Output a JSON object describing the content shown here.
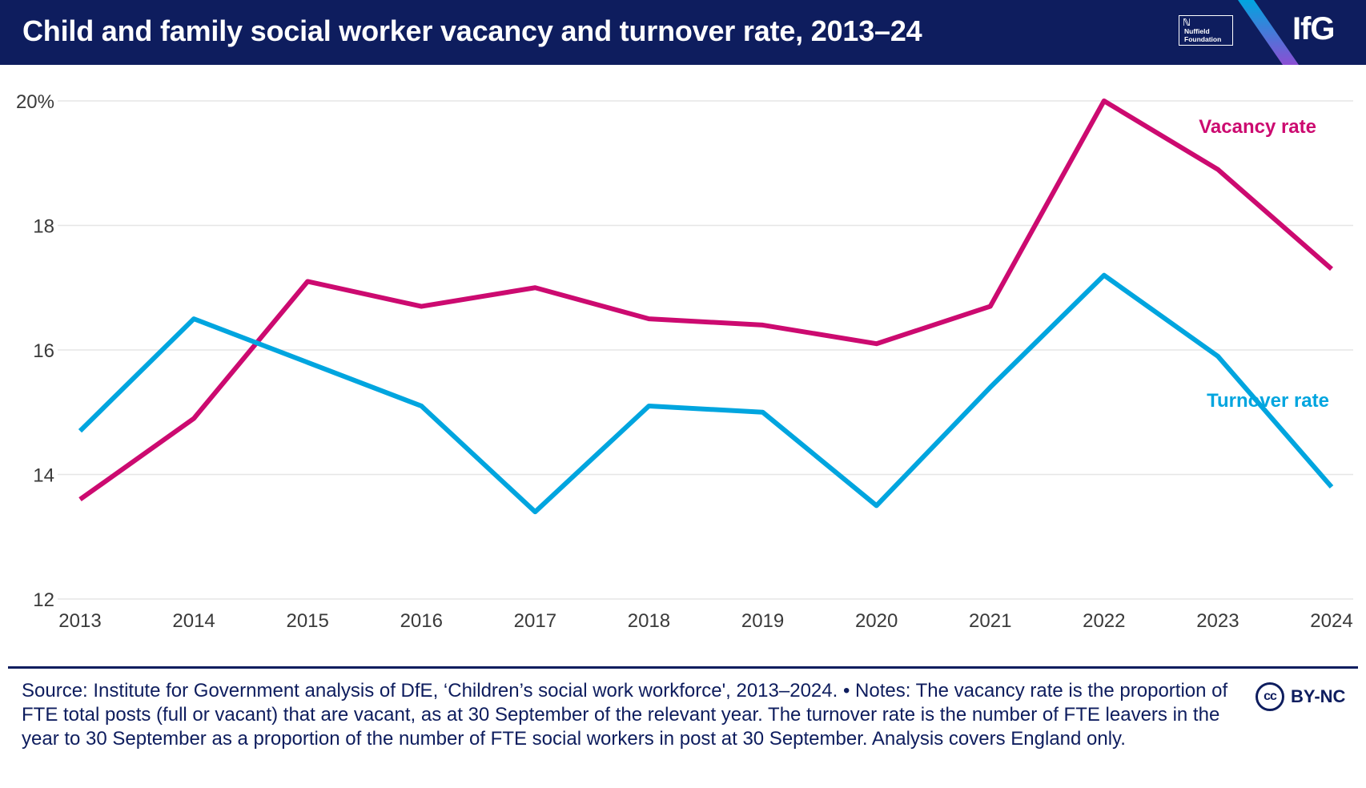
{
  "header": {
    "title": "Child and family social worker vacancy and turnover rate, 2013–24",
    "nuffield_label": "Nuffield Foundation",
    "ifg_label": "IfG"
  },
  "chart_data": {
    "type": "line",
    "title": "Child and family social worker vacancy and turnover rate, 2013–24",
    "xlabel": "",
    "ylabel": "",
    "categories": [
      "2013",
      "2014",
      "2015",
      "2016",
      "2017",
      "2018",
      "2019",
      "2020",
      "2021",
      "2022",
      "2023",
      "2024"
    ],
    "ylim": [
      12,
      20
    ],
    "yticks": [
      12,
      14,
      16,
      18,
      20
    ],
    "ytick_labels": [
      "12",
      "14",
      "16",
      "18",
      "20%"
    ],
    "grid": true,
    "series": [
      {
        "name": "Vacancy rate",
        "color": "#cc0a70",
        "values": [
          13.6,
          14.9,
          17.1,
          16.7,
          17.0,
          16.5,
          16.4,
          16.1,
          16.7,
          20.0,
          18.9,
          17.3
        ]
      },
      {
        "name": "Turnover rate",
        "color": "#00a5df",
        "values": [
          14.7,
          16.5,
          15.8,
          15.1,
          13.4,
          15.1,
          15.0,
          13.5,
          15.4,
          17.2,
          15.9,
          13.8
        ]
      }
    ]
  },
  "footer": {
    "source": "Source: Institute for Government analysis of DfE, ‘Children’s social work workforce', 2013–2024. • Notes: The vacancy rate is the proportion of FTE total posts (full or vacant) that are vacant, as at 30 September of the relevant year. The turnover rate is the number of FTE leavers in the year to 30 September as a proportion of the number of FTE social workers in post at 30 September. Analysis covers England only.",
    "cc_symbol": "cc",
    "license": "BY-NC"
  }
}
